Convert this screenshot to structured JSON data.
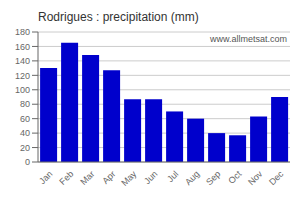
{
  "chart_data": {
    "type": "bar",
    "title": "Rodrigues : precipitation (mm)",
    "categories": [
      "Jan",
      "Feb",
      "Mar",
      "Apr",
      "May",
      "Jun",
      "Jul",
      "Aug",
      "Sep",
      "Oct",
      "Nov",
      "Dec"
    ],
    "values": [
      130,
      165,
      148,
      127,
      87,
      87,
      70,
      60,
      40,
      37,
      63,
      90
    ],
    "color": "#0000cc",
    "ylim": [
      0,
      180
    ],
    "yticks": [
      0,
      20,
      40,
      60,
      80,
      100,
      120,
      140,
      160,
      180
    ],
    "grid": true,
    "annotations": [
      "www.allmetsat.com"
    ]
  }
}
